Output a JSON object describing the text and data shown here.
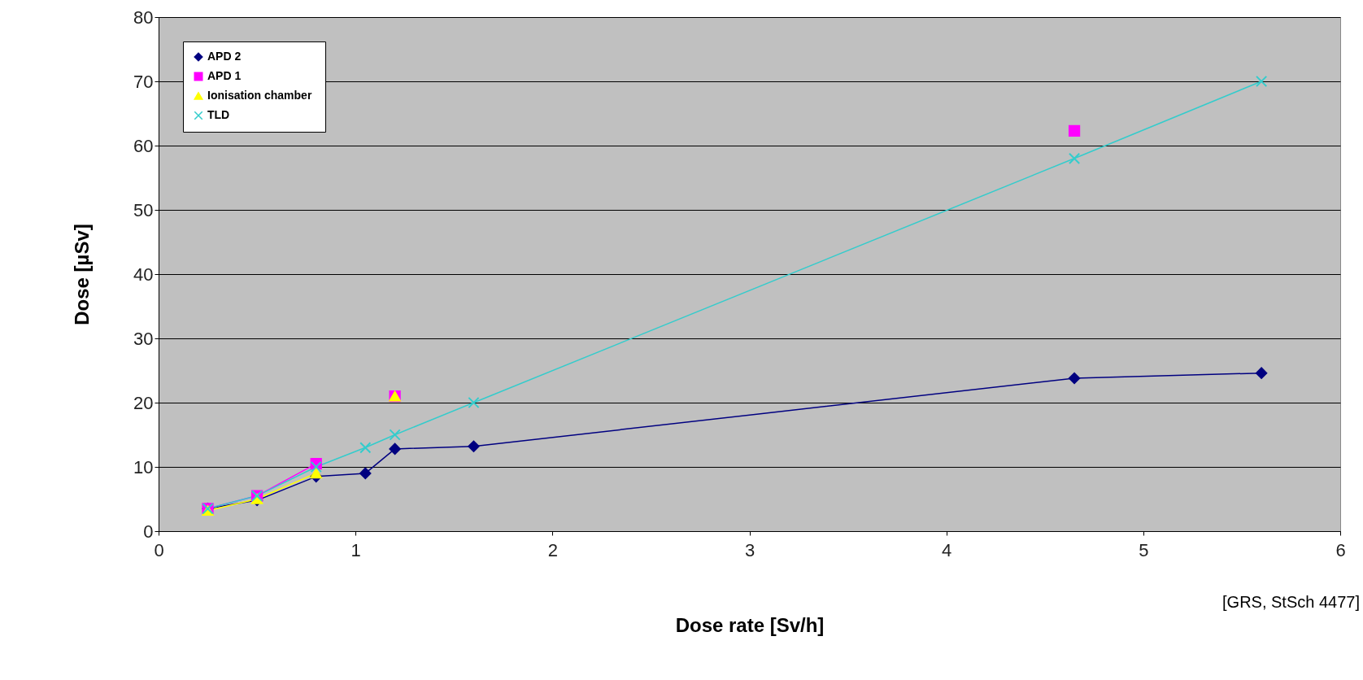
{
  "chart_data": {
    "type": "line",
    "xlabel": "Dose rate [Sv/h]",
    "ylabel": "Dose [µSv]",
    "annotations": [
      "[GRS, StSch 4477]"
    ],
    "x": [
      0.25,
      0.5,
      0.8,
      1.05,
      1.2,
      1.6,
      4.65,
      5.6
    ],
    "series": [
      {
        "name": "APD 2",
        "color": "#000080",
        "marker": "diamond",
        "values": [
          3.5,
          4.8,
          8.5,
          9,
          12.8,
          13.2,
          23.8,
          24.6
        ]
      },
      {
        "name": "APD 1",
        "color": "#ff00ff",
        "marker": "square",
        "values": [
          3.5,
          5.5,
          10.5,
          null,
          21,
          null,
          62.3,
          null
        ]
      },
      {
        "name": "Ionisation  chamber",
        "color": "#ffff00",
        "marker": "triangle",
        "values": [
          3.2,
          5,
          9,
          null,
          21,
          null,
          null,
          null
        ]
      },
      {
        "name": "TLD",
        "color": "#33cccc",
        "marker": "cross",
        "values": [
          3.5,
          5.5,
          10,
          13,
          15,
          20,
          58,
          70
        ]
      }
    ],
    "xlim": [
      0,
      6
    ],
    "xticks": [
      0,
      1,
      2,
      3,
      4,
      5,
      6
    ],
    "ylim": [
      0,
      80
    ],
    "yticks": [
      0,
      10,
      20,
      30,
      40,
      50,
      60,
      70,
      80
    ],
    "grid": "y",
    "legend": "top left"
  }
}
